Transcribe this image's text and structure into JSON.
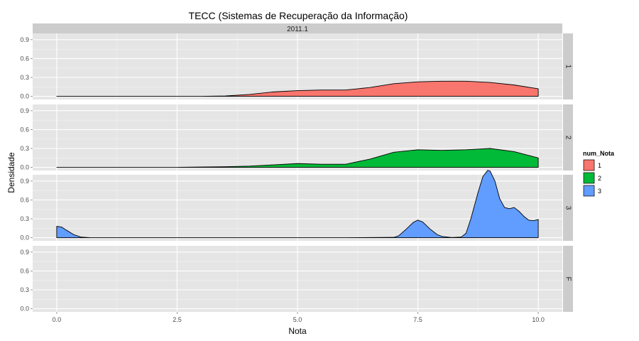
{
  "chart_data": {
    "type": "area",
    "title": "TECC (Sistemas de Recuperação da Informação)",
    "facet_top_label": "2011.1",
    "xlabel": "Nota",
    "ylabel": "Densidade",
    "xlim": [
      -0.5,
      10.5
    ],
    "ylim": [
      -0.05,
      1.0
    ],
    "x_ticks": [
      0.0,
      2.5,
      5.0,
      7.5,
      10.0
    ],
    "x_tick_labels": [
      "0.0",
      "2.5",
      "5.0",
      "7.5",
      "10.0"
    ],
    "y_ticks": [
      0.0,
      0.3,
      0.6,
      0.9
    ],
    "y_tick_labels": [
      "0.0",
      "0.3",
      "0.6",
      "0.9"
    ],
    "grid": true,
    "legend": {
      "title": "num_Nota",
      "position": "right",
      "entries": [
        {
          "label": "1",
          "color": "#F8766D"
        },
        {
          "label": "2",
          "color": "#00BA38"
        },
        {
          "label": "3",
          "color": "#619CFF"
        }
      ]
    },
    "panels": [
      {
        "label": "1",
        "color": "#F8766D",
        "x": [
          0,
          0.5,
          1,
          1.5,
          2,
          2.5,
          3,
          3.5,
          4,
          4.5,
          5,
          5.5,
          6,
          6.5,
          7,
          7.5,
          8,
          8.5,
          9,
          9.5,
          10
        ],
        "y": [
          0,
          0,
          0,
          0,
          0,
          0,
          0,
          0.005,
          0.03,
          0.07,
          0.09,
          0.1,
          0.1,
          0.14,
          0.2,
          0.23,
          0.24,
          0.24,
          0.22,
          0.18,
          0.12
        ]
      },
      {
        "label": "2",
        "color": "#00BA38",
        "x": [
          0,
          0.5,
          1,
          1.5,
          2,
          2.5,
          3,
          3.5,
          4,
          4.5,
          5,
          5.5,
          6,
          6.5,
          7,
          7.5,
          8,
          8.5,
          9,
          9.5,
          10
        ],
        "y": [
          0,
          0,
          0,
          0,
          0,
          0,
          0.005,
          0.01,
          0.02,
          0.04,
          0.06,
          0.05,
          0.05,
          0.13,
          0.24,
          0.28,
          0.27,
          0.28,
          0.3,
          0.25,
          0.15
        ]
      },
      {
        "label": "3",
        "color": "#619CFF",
        "x": [
          0,
          0.1,
          0.2,
          0.35,
          0.5,
          0.7,
          1,
          2,
          3,
          4,
          5,
          6,
          7,
          7.1,
          7.25,
          7.4,
          7.5,
          7.6,
          7.75,
          7.9,
          8,
          8.2,
          8.4,
          8.5,
          8.6,
          8.75,
          8.85,
          8.95,
          9.0,
          9.1,
          9.2,
          9.3,
          9.4,
          9.5,
          9.6,
          9.7,
          9.8,
          9.9,
          10
        ],
        "y": [
          0.18,
          0.17,
          0.12,
          0.05,
          0.01,
          0.0,
          0,
          0,
          0,
          0,
          0,
          0,
          0.005,
          0.03,
          0.13,
          0.24,
          0.28,
          0.25,
          0.14,
          0.05,
          0.02,
          0.003,
          0.01,
          0.07,
          0.3,
          0.72,
          0.97,
          1.07,
          1.06,
          0.9,
          0.62,
          0.48,
          0.46,
          0.48,
          0.42,
          0.34,
          0.28,
          0.27,
          0.29
        ]
      },
      {
        "label": "F",
        "color": "#cccccc",
        "x": [],
        "y": []
      }
    ]
  }
}
